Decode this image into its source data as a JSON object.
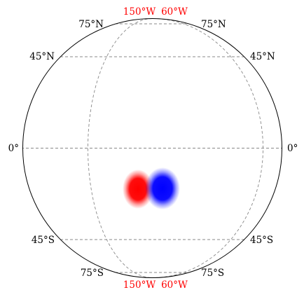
{
  "map": {
    "projection": "orthographic",
    "graticule": {
      "parallels": [
        {
          "label_left": "75°N",
          "label_right": "75°N"
        },
        {
          "label_left": "45°N",
          "label_right": "45°N"
        },
        {
          "label_left": "0°",
          "label_right": "0°"
        },
        {
          "label_left": "45°S",
          "label_right": "45°S"
        },
        {
          "label_left": "75°S",
          "label_right": "75°S"
        }
      ],
      "meridians": [
        {
          "label": "150°W",
          "label_color": "#ff0000"
        },
        {
          "label": "60°W",
          "label_color": "#ff0000"
        }
      ]
    },
    "features": [
      {
        "name": "red-blob",
        "color": "#ff0000"
      },
      {
        "name": "blue-blob",
        "color": "#0000ff"
      }
    ]
  },
  "colors": {
    "outline": "#000000",
    "grid": "#888888",
    "label": "#000000",
    "meridian_label": "#ff0000"
  }
}
